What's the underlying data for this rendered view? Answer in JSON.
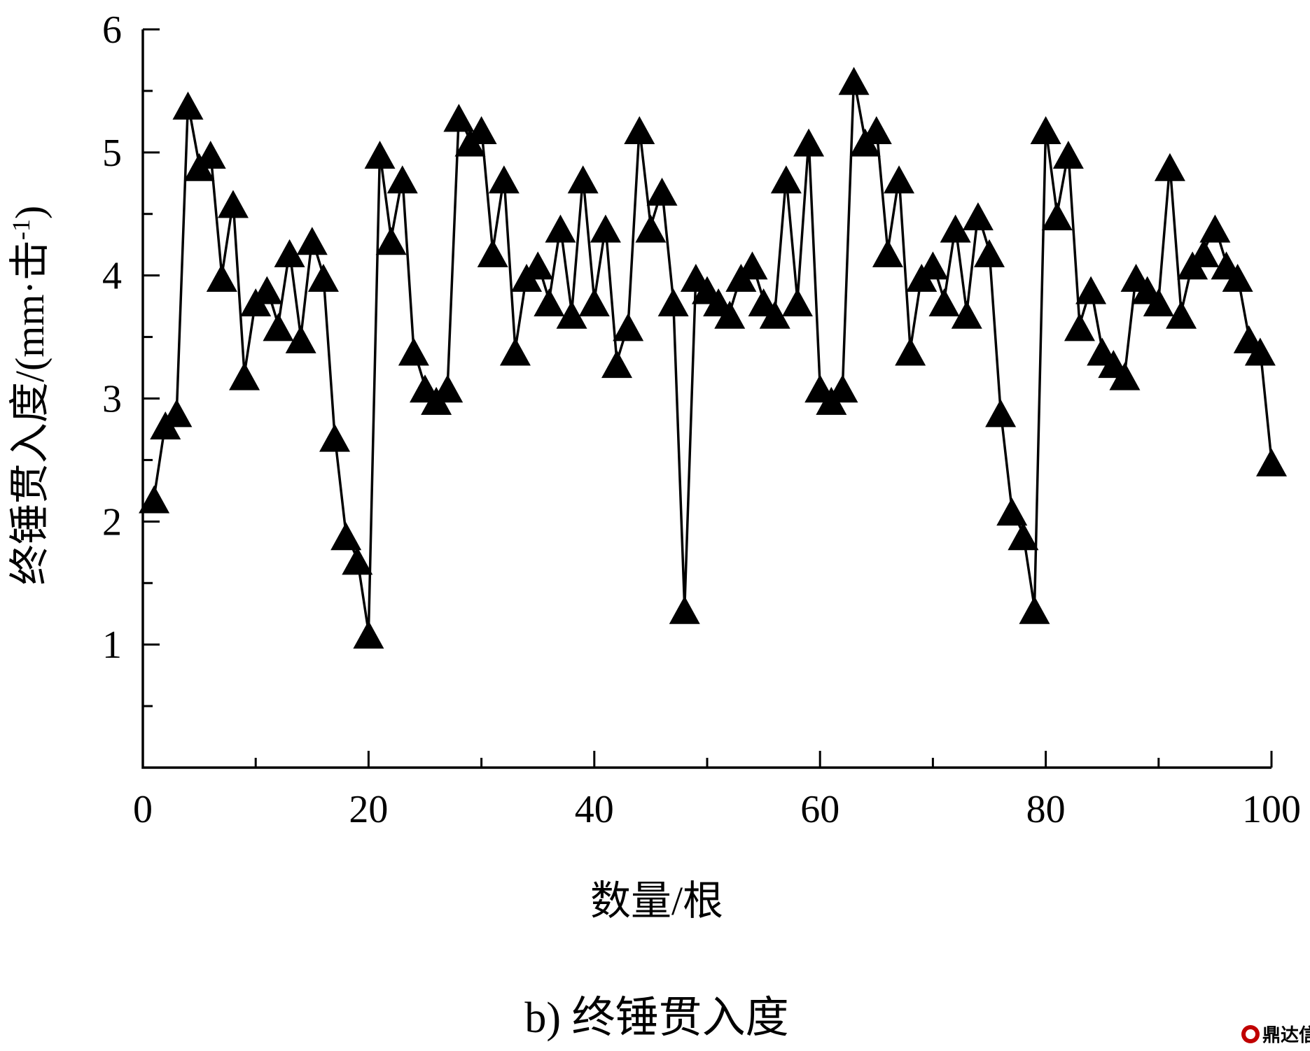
{
  "chart_data": {
    "type": "line",
    "xlabel": "数量/根",
    "ylabel": "终锤贯入度/(mm·击",
    "ylabel_sup": "-1",
    "ylabel_close": ")",
    "caption": "b) 终锤贯入度",
    "xlim": [
      0,
      100
    ],
    "ylim": [
      0,
      6
    ],
    "xticks": [
      0,
      20,
      40,
      60,
      80,
      100
    ],
    "xtick_labels": [
      "0",
      "20",
      "40",
      "60",
      "80",
      "100"
    ],
    "yticks": [
      1,
      2,
      3,
      4,
      5,
      6
    ],
    "ytick_labels": [
      "1",
      "2",
      "3",
      "4",
      "5",
      "6"
    ],
    "marker": "triangle",
    "grid": false,
    "series": [
      {
        "x": [
          1,
          2,
          3,
          4,
          5,
          6,
          7,
          8,
          9,
          10,
          11,
          12,
          13,
          14,
          15,
          16,
          17,
          18,
          19,
          20,
          21,
          22,
          23,
          24,
          25,
          26,
          27,
          28,
          29,
          30,
          31,
          32,
          33,
          34,
          35,
          36,
          37,
          38,
          39,
          40,
          41,
          42,
          43,
          44,
          45,
          46,
          47,
          48,
          49,
          50,
          51,
          52,
          53,
          54,
          55,
          56,
          57,
          58,
          59,
          60,
          61,
          62,
          63,
          64,
          65,
          66,
          67,
          68,
          69,
          70,
          71,
          72,
          73,
          74,
          75,
          76,
          77,
          78,
          79,
          80,
          81,
          82,
          83,
          84,
          85,
          86,
          87,
          88,
          89,
          90,
          91,
          92,
          93,
          94,
          95,
          96,
          97,
          98,
          99,
          100
        ],
        "values": [
          2.2,
          2.8,
          2.9,
          5.4,
          4.9,
          5.0,
          4.0,
          4.6,
          3.2,
          3.8,
          3.9,
          3.6,
          4.2,
          3.5,
          4.3,
          4.0,
          2.7,
          1.9,
          1.7,
          1.1,
          5.0,
          4.3,
          4.8,
          3.4,
          3.1,
          3.0,
          3.1,
          5.3,
          5.1,
          5.2,
          4.2,
          4.8,
          3.4,
          4.0,
          4.1,
          3.8,
          4.4,
          3.7,
          4.8,
          3.8,
          4.4,
          3.3,
          3.6,
          5.2,
          4.4,
          4.7,
          3.8,
          1.3,
          4.0,
          3.9,
          3.8,
          3.7,
          4.0,
          4.1,
          3.8,
          3.7,
          4.8,
          3.8,
          5.1,
          3.1,
          3.0,
          3.1,
          5.6,
          5.1,
          5.2,
          4.2,
          4.8,
          3.4,
          4.0,
          4.1,
          3.8,
          4.4,
          3.7,
          4.5,
          4.2,
          2.9,
          2.1,
          1.9,
          1.3,
          5.2,
          4.5,
          5.0,
          3.6,
          3.9,
          3.4,
          3.3,
          3.2,
          4.0,
          3.9,
          3.8,
          4.9,
          3.7,
          4.1,
          4.2,
          4.4,
          4.1,
          4.0,
          3.5,
          3.4,
          2.5
        ]
      }
    ]
  },
  "watermark": {
    "text": "鼎达信",
    "color": "#c00000"
  }
}
